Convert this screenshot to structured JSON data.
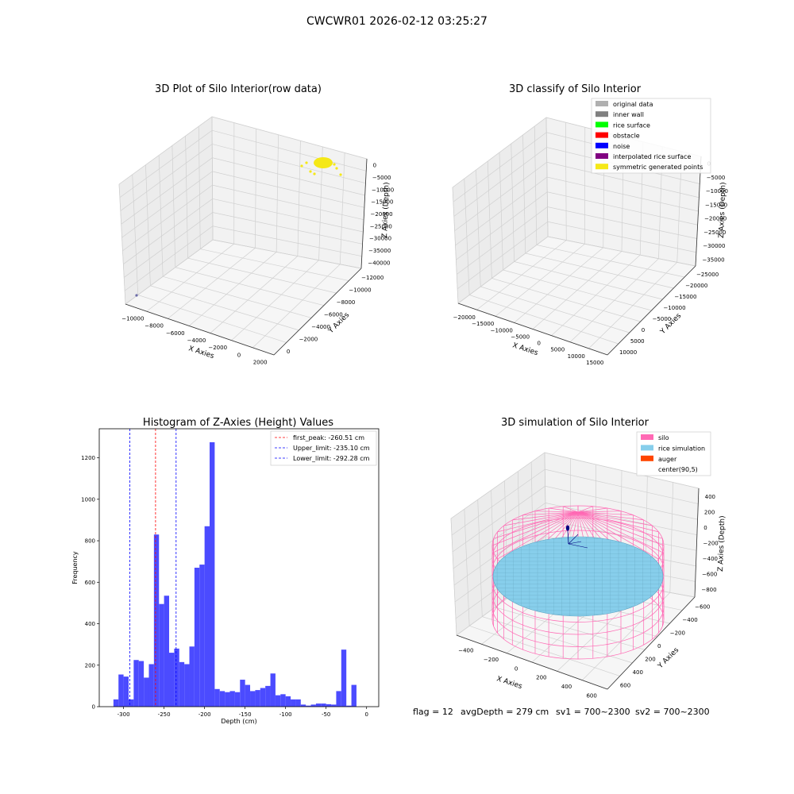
{
  "suptitle": "CWCWR01 2026-02-12 03:25:27",
  "footer": {
    "flag": "flag = 12",
    "avg": "avgDepth = 279 cm",
    "sv1": "sv1 = 700~2300",
    "sv2": "sv2 = 700~2300"
  },
  "colors": {
    "bar": "#4b4bff",
    "red": "#ff0000",
    "blue": "#0000ff",
    "yellow": "#f5e817",
    "silo": "#ff69b4",
    "rice": "#87ceeb",
    "auger": "#ff4500",
    "grey": "#b0b0b0",
    "grey_dark": "#808080",
    "green": "#00ff00",
    "purple": "#800080"
  },
  "chart_data": [
    {
      "type": "scatter",
      "title": "3D Plot of Silo Interior(row data)",
      "xlabel": "X Axies",
      "ylabel": "Y Axies",
      "zlabel": "Z Axies (Depth)",
      "x_ticks": [
        "−10000",
        "−8000",
        "−6000",
        "−4000",
        "−2000",
        "0",
        "2000"
      ],
      "y_ticks": [
        "0",
        "−2000",
        "−4000",
        "−6000",
        "−8000",
        "−10000",
        "−12000"
      ],
      "z_ticks": [
        "0",
        "−5000",
        "−10000",
        "−15000",
        "−20000",
        "−25000",
        "−30000",
        "−35000",
        "−40000"
      ],
      "series": []
    },
    {
      "type": "scatter",
      "title": "3D classify of Silo Interior",
      "xlabel": "X Axies",
      "ylabel": "Y Axies",
      "zlabel": "Z Axies (Depth)",
      "x_ticks": [
        "−20000",
        "−15000",
        "−10000",
        "−5000",
        "0",
        "5000",
        "10000",
        "15000"
      ],
      "y_ticks": [
        "10000",
        "5000",
        "0",
        "−5000",
        "−10000",
        "−15000",
        "−20000",
        "−25000"
      ],
      "z_ticks": [
        "0",
        "−5000",
        "−10000",
        "−15000",
        "−20000",
        "−25000",
        "−30000",
        "−35000"
      ],
      "legend": [
        "original data",
        "inner wall",
        "rice surface",
        "obstacle",
        "noise",
        "interpolated rice surface",
        "symmetric generated points"
      ],
      "legend_placement": "top-right"
    },
    {
      "type": "bar",
      "title": "Histogram of Z-Axies (Height) Values",
      "xlabel": "Depth (cm)",
      "ylabel": "Frequency",
      "xlim": [
        -330,
        15
      ],
      "ylim": [
        0,
        1340
      ],
      "x_ticks": [
        -300,
        -250,
        -200,
        -150,
        -100,
        -50,
        0
      ],
      "y_ticks": [
        0,
        200,
        400,
        600,
        800,
        1000,
        1200
      ],
      "bin_start": -312.5,
      "bin_width": 6.25,
      "values": [
        35,
        155,
        145,
        35,
        225,
        220,
        140,
        205,
        830,
        495,
        535,
        260,
        280,
        215,
        205,
        290,
        670,
        685,
        870,
        1275,
        85,
        75,
        70,
        75,
        70,
        130,
        105,
        75,
        80,
        90,
        100,
        160,
        55,
        60,
        50,
        35,
        35,
        10,
        5,
        10,
        15,
        15,
        12,
        10,
        75,
        275,
        5,
        105
      ],
      "vlines": [
        {
          "name": "first_peak: -260.51 cm",
          "value": -260.51,
          "color": "red"
        },
        {
          "name": "Upper_limit: -235.10 cm",
          "value": -235.1,
          "color": "blue"
        },
        {
          "name": "Lower_limit: -292.28 cm",
          "value": -292.28,
          "color": "blue"
        }
      ],
      "legend_placement": "top-right"
    },
    {
      "type": "scatter",
      "title": "3D simulation of Silo Interior",
      "xlabel": "X Axies",
      "ylabel": "Y Axies",
      "zlabel": "Z Axies (Depth)",
      "x_ticks": [
        "−400",
        "−200",
        "0",
        "200",
        "400",
        "600"
      ],
      "y_ticks": [
        "600",
        "400",
        "200",
        "0",
        "−200",
        "−400",
        "−600"
      ],
      "z_ticks": [
        "400",
        "200",
        "0",
        "−200",
        "−400",
        "−600",
        "−800"
      ],
      "legend": [
        "silo",
        "rice simulation",
        "auger",
        "center(90,5)"
      ],
      "legend_placement": "top-right"
    }
  ]
}
